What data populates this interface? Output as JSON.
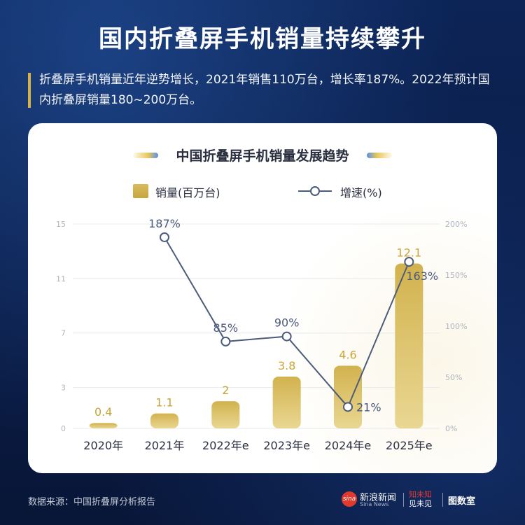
{
  "header": {
    "title": "国内折叠屏手机销量持续攀升",
    "intro": "折叠屏手机销量近年逆势增长，2021年销售110万台，增长率187%。2022年预计国内折叠屏销量180~200万台。"
  },
  "colors": {
    "background": "#0b1f4a",
    "bar": "#d4b54f",
    "line": "#4d5c7a",
    "bar_label": "#c9a43a",
    "line_label": "#4a5a7a"
  },
  "chart_data": {
    "type": "bar",
    "title": "中国折叠屏手机销量发展趋势",
    "categories": [
      "2020年",
      "2021年",
      "2022年e",
      "2023年e",
      "2024年e",
      "2025年e"
    ],
    "series": [
      {
        "name": "销量(百万台)",
        "type": "bar",
        "axis": "left",
        "values": [
          0.4,
          1.1,
          2,
          3.8,
          4.6,
          12.1
        ]
      },
      {
        "name": "增速(%)",
        "type": "line",
        "axis": "right",
        "values": [
          null,
          187,
          85,
          90,
          21,
          163
        ],
        "labels": [
          "",
          "187%",
          "85%",
          "90%",
          "21%",
          "163%"
        ]
      }
    ],
    "left_axis": {
      "ticks": [
        0,
        3,
        7,
        11,
        15
      ],
      "ylim": [
        0,
        15
      ]
    },
    "right_axis": {
      "ticks": [
        "0%",
        "50%",
        "100%",
        "150%",
        "200%"
      ],
      "ylim": [
        0,
        200
      ]
    },
    "legend_position": "top",
    "grid": true
  },
  "footer": {
    "source": "数据来源：中国折叠屏分析报告",
    "sina_cn": "新浪新闻",
    "sina_en": "Sina News",
    "sina_icon": "sina",
    "zhi_line1": "知未知",
    "zhi_line2": "见未见",
    "tushu": "图数室"
  }
}
